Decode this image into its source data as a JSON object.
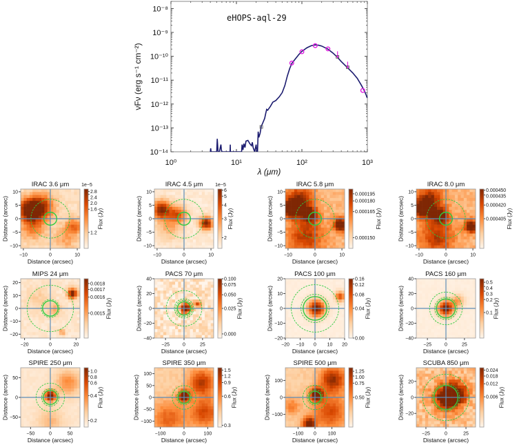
{
  "sed": {
    "chart_data": {
      "type": "line",
      "annotation": "eHOPS-aql-29",
      "xlabel": "λ (μm)",
      "ylabel": "νFν (erg s⁻¹ cm⁻²)",
      "xscale": "log",
      "yscale": "log",
      "xlim": [
        1,
        1000
      ],
      "ylim": [
        1e-14,
        2e-08
      ],
      "xticks": [
        {
          "v": 1,
          "label": "10⁰"
        },
        {
          "v": 10,
          "label": "10¹"
        },
        {
          "v": 100,
          "label": "10²"
        },
        {
          "v": 1000,
          "label": "10³"
        }
      ],
      "yticks": [
        {
          "v": 1e-08,
          "label": "10⁻⁸"
        },
        {
          "v": 1e-09,
          "label": "10⁻⁹"
        },
        {
          "v": 1e-10,
          "label": "10⁻¹⁰"
        },
        {
          "v": 1e-11,
          "label": "10⁻¹¹"
        },
        {
          "v": 1e-12,
          "label": "10⁻¹²"
        },
        {
          "v": 1e-13,
          "label": "10⁻¹³"
        },
        {
          "v": 1e-14,
          "label": "10⁻¹⁴"
        }
      ],
      "model": {
        "color": "#1a1a6e",
        "x": [
          4.0,
          4.05,
          4.1,
          4.3,
          5.0,
          5.1,
          5.25,
          5.5,
          5.8,
          5.9,
          6.0,
          8.0,
          8.05,
          8.1,
          12,
          12.2,
          12.6,
          13,
          13.5,
          14,
          15,
          16,
          17,
          17.5,
          18,
          19,
          20,
          20.5,
          21,
          21.5,
          22,
          23,
          24,
          25,
          27,
          28,
          29,
          30,
          33,
          36,
          40,
          45,
          50,
          55,
          60,
          65,
          70,
          80,
          90,
          100,
          120,
          140,
          160,
          180,
          200,
          250,
          300,
          350,
          400,
          500,
          600,
          700,
          800,
          850,
          900,
          1000
        ],
        "y": [
          1e-14,
          1.4e-14,
          1e-14,
          1e-14,
          1e-14,
          3.5e-14,
          1e-14,
          1e-14,
          2e-14,
          1.2e-14,
          1e-14,
          1e-14,
          2e-14,
          1e-14,
          1e-14,
          2e-14,
          1.2e-14,
          2.2e-14,
          1.5e-14,
          2.8e-14,
          3e-14,
          2.2e-14,
          1.8e-14,
          2.5e-14,
          1.5e-14,
          1e-14,
          2e-14,
          1e-14,
          1e-14,
          7e-14,
          4e-14,
          6e-14,
          1.2e-13,
          1.5e-13,
          2.5e-13,
          4e-13,
          6e-13,
          5.5e-13,
          8e-13,
          1.2e-12,
          1.4e-12,
          2e-12,
          3e-12,
          6e-12,
          1.5e-11,
          3e-11,
          5e-11,
          8e-11,
          1.2e-10,
          1.6e-10,
          2.3e-10,
          2.8e-10,
          3e-10,
          2.9e-10,
          2.7e-10,
          2e-10,
          1.35e-10,
          9e-11,
          6e-11,
          3.3e-11,
          2e-11,
          1.2e-11,
          6.5e-12,
          4.8e-12,
          3.6e-12,
          1.8e-12
        ]
      },
      "detections": {
        "color": "#e020e0",
        "x": [
          70,
          100,
          160,
          250,
          850
        ],
        "y": [
          5.2e-11,
          1.55e-10,
          2.8e-10,
          2.05e-10,
          3.7e-12
        ]
      },
      "upper_limits": {
        "color": "#e020e0",
        "x": [
          350,
          500
        ],
        "y": [
          9.5e-11,
          3.5e-11
        ]
      },
      "other_points": {
        "color": "#555555",
        "x": [
          24
        ],
        "y": [
          1.1e-13
        ]
      }
    }
  },
  "panels": {
    "chart_data": [
      {
        "type": "heatmap",
        "title": "IRAC 3.6 μm",
        "xlabel": "Distance (arcsec)",
        "ylabel": "Distance (arcsec)",
        "lim": 11,
        "xticks": [
          -10,
          0,
          10
        ],
        "yticks": [
          -10,
          -5,
          0,
          5,
          10
        ],
        "cbar_label": "Flux (Jy)",
        "cbar_offset": "1e−5",
        "cbar_ticks": [
          "2.8",
          "2.4",
          "2.0",
          "1.6",
          "1.2"
        ],
        "apertures_solid": [
          2.4
        ],
        "apertures_dashed": [
          7.2
        ]
      },
      {
        "type": "heatmap",
        "title": "IRAC 4.5 μm",
        "xlabel": "Distance (arcsec)",
        "ylabel": "Distance (arcsec)",
        "lim": 11,
        "xticks": [
          -10,
          0,
          10
        ],
        "yticks": [
          -10,
          -5,
          0,
          5,
          10
        ],
        "cbar_label": "Flux (Jy)",
        "cbar_offset": "1e−5",
        "cbar_ticks": [
          "6",
          "5",
          "4",
          "3",
          "2"
        ],
        "apertures_solid": [
          2.4
        ],
        "apertures_dashed": [
          7.2
        ]
      },
      {
        "type": "heatmap",
        "title": "IRAC 5.8 μm",
        "xlabel": "Distance (arcsec)",
        "ylabel": "Distance (arcsec)",
        "lim": 11,
        "xticks": [
          -10,
          0,
          10
        ],
        "yticks": [
          -10,
          -5,
          0,
          5,
          10
        ],
        "cbar_label": "Flux (Jy)",
        "cbar_offset": "",
        "cbar_ticks": [
          "0.000195",
          "0.000180",
          "0.000165",
          "0.000150"
        ],
        "apertures_solid": [
          2.4
        ],
        "apertures_dashed": [
          7.2
        ]
      },
      {
        "type": "heatmap",
        "title": "IRAC 8.0 μm",
        "xlabel": "Distance (arcsec)",
        "ylabel": "Distance (arcsec)",
        "lim": 11,
        "xticks": [
          -10,
          0,
          10
        ],
        "yticks": [
          -10,
          -5,
          0,
          5,
          10
        ],
        "cbar_label": "Flux (Jy)",
        "cbar_offset": "",
        "cbar_ticks": [
          "0.000450",
          "0.000435",
          "0.000420",
          "0.000405"
        ],
        "apertures_solid": [
          2.4
        ],
        "apertures_dashed": [
          7.2
        ]
      },
      {
        "type": "heatmap",
        "title": "MIPS 24 μm",
        "xlabel": "Distance (arcsec)",
        "ylabel": "Distance (arcsec)",
        "lim": 23,
        "xticks": [
          -20,
          0,
          20
        ],
        "yticks": [
          -20,
          -10,
          0,
          10,
          20
        ],
        "cbar_label": "Flux (Jy)",
        "cbar_offset": "",
        "cbar_ticks": [
          "0.0018",
          "0.0017",
          "0.0016",
          "0.0015"
        ],
        "apertures_solid": [
          6
        ],
        "apertures_dashed": [
          7,
          18
        ]
      },
      {
        "type": "heatmap",
        "title": "PACS 70 μm",
        "xlabel": "Distance (arcsec)",
        "ylabel": "Distance (arcsec)",
        "lim": 40,
        "xticks": [
          -25,
          0,
          25
        ],
        "yticks": [
          -40,
          -20,
          0,
          20,
          40
        ],
        "cbar_label": "Flux (Jy)",
        "cbar_offset": "",
        "cbar_ticks": [
          "0.100",
          "0.075",
          "0.050",
          "0.025",
          "0.000"
        ],
        "apertures_solid": [
          9
        ],
        "apertures_dashed": [
          11,
          13,
          24
        ]
      },
      {
        "type": "heatmap",
        "title": "PACS 100 μm",
        "xlabel": "Distance (arcsec)",
        "ylabel": "Distance (arcsec)",
        "lim": 20,
        "xticks": [
          -20,
          -10,
          0,
          10,
          20
        ],
        "yticks": [
          -20,
          -10,
          0,
          10,
          20
        ],
        "cbar_label": "Flux (Jy)",
        "cbar_offset": "",
        "cbar_ticks": [
          "0.16",
          "0.12",
          "0.08",
          "0.04",
          "0.00"
        ],
        "apertures_solid": [
          8
        ],
        "apertures_dashed": [
          9.5,
          16
        ]
      },
      {
        "type": "heatmap",
        "title": "PACS 160 μm",
        "xlabel": "Distance (arcsec)",
        "ylabel": "Distance (arcsec)",
        "lim": 40,
        "xticks": [
          -25,
          0,
          25
        ],
        "yticks": [
          -40,
          -20,
          0,
          20,
          40
        ],
        "cbar_label": "Flux (Jy)",
        "cbar_offset": "",
        "cbar_ticks": [
          "0.5",
          "0.4",
          "0.3",
          "0.2",
          "0.1"
        ],
        "apertures_solid": [
          12.8
        ],
        "apertures_dashed": [
          15,
          22
        ]
      },
      {
        "type": "heatmap",
        "title": "SPIRE 250 μm",
        "xlabel": "Distance (arcsec)",
        "ylabel": "Distance (arcsec)",
        "lim": 75,
        "xticks": [
          -50,
          0,
          50
        ],
        "yticks": [
          -50,
          0,
          50
        ],
        "cbar_label": "Flux (Jy)",
        "cbar_offset": "",
        "cbar_ticks": [
          "1.0",
          "0.8",
          "0.6",
          "0.4",
          "0.2"
        ],
        "apertures_solid": [
          18
        ],
        "apertures_dashed": [
          22,
          36
        ]
      },
      {
        "type": "heatmap",
        "title": "SPIRE 350 μm",
        "xlabel": "Distance (arcsec)",
        "ylabel": "Distance (arcsec)",
        "lim": 125,
        "xticks": [
          -100,
          0,
          100
        ],
        "yticks": [
          -100,
          -50,
          0,
          50,
          100
        ],
        "cbar_label": "Flux (Jy)",
        "cbar_offset": "",
        "cbar_ticks": [
          "1.5",
          "1.2",
          "0.9",
          "0.6",
          "0.3"
        ],
        "apertures_solid": [
          25
        ],
        "apertures_dashed": [
          31,
          50
        ]
      },
      {
        "type": "heatmap",
        "title": "SPIRE 500 μm",
        "xlabel": "Distance (arcsec)",
        "ylabel": "Distance (arcsec)",
        "lim": 175,
        "xticks": [
          -100,
          0,
          100
        ],
        "yticks": [
          -100,
          0,
          100
        ],
        "cbar_label": "Flux (Jy)",
        "cbar_offset": "",
        "cbar_ticks": [
          "1.25",
          "1.00",
          "0.75",
          "0.50"
        ],
        "apertures_solid": [
          36
        ],
        "apertures_dashed": [
          45,
          72
        ]
      },
      {
        "type": "heatmap",
        "title": "SCUBA 850 μm",
        "xlabel": "Distance (arcsec)",
        "ylabel": "Distance (arcsec)",
        "lim": 37,
        "xticks": [
          -25,
          0,
          25
        ],
        "yticks": [
          -20,
          0,
          20
        ],
        "cbar_label": "Flux (Jy)",
        "cbar_offset": "",
        "cbar_ticks": [
          "0.024",
          "0.018",
          "0.012",
          "0.006"
        ],
        "apertures_solid": [
          15
        ],
        "apertures_dashed": [
          17,
          29
        ]
      }
    ],
    "colormap": [
      "#fff5eb",
      "#fdd0a2",
      "#fd8d3c",
      "#d94801",
      "#7f2704"
    ],
    "crosshair_color": "#5b8db8",
    "aperture_color": "#2ecc40"
  }
}
